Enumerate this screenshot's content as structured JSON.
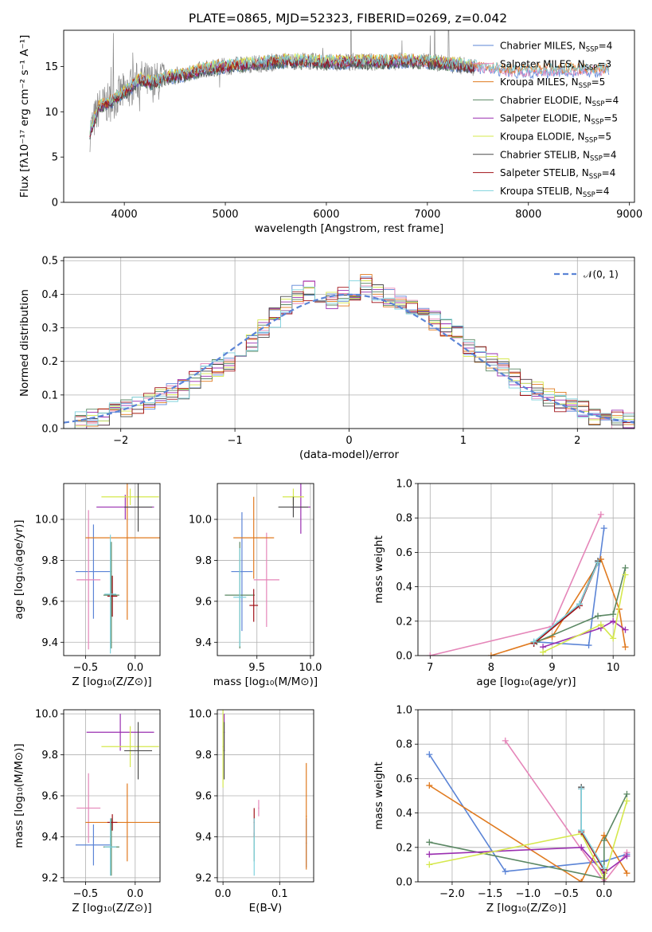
{
  "figure": {
    "title": "PLATE=0865, MJD=52323, FIBERID=0269, z=0.042"
  },
  "colors": {
    "chabrier_miles": "#5b84d6",
    "salpeter_miles": "#e586b9",
    "kroupa_miles": "#e07a1f",
    "chabrier_elodie": "#5a8763",
    "salpeter_elodie": "#9a2fb0",
    "kroupa_elodie": "#d5e84d",
    "chabrier_stelib": "#4a4a4a",
    "salpeter_stelib": "#a01218",
    "kroupa_stelib": "#7ed2dd",
    "observed": "#8a8a8a",
    "normal": "#5b84d6",
    "grid": "#b0b0b0"
  },
  "chart_data": [
    {
      "id": "spectrum",
      "type": "line",
      "title": "PLATE=0865, MJD=52323, FIBERID=0269, z=0.042",
      "xlabel": "wavelength [Angstrom, rest frame]",
      "ylabel": "Flux [fλ10⁻¹⁷ erg cm⁻² s⁻¹ A⁻¹]",
      "xlim": [
        3400,
        9050
      ],
      "ylim": [
        0,
        19
      ],
      "xticks": [
        4000,
        5000,
        6000,
        7000,
        8000,
        9000
      ],
      "yticks": [
        0,
        5,
        10,
        15
      ],
      "grid": false,
      "legend_position": "top-right",
      "legend": [
        {
          "key": "chabrier_miles",
          "label": "Chabrier MILES, N",
          "sub": "SSP",
          "suffix": "=4"
        },
        {
          "key": "salpeter_miles",
          "label": "Salpeter MILES, N",
          "sub": "SSP",
          "suffix": "=3"
        },
        {
          "key": "kroupa_miles",
          "label": "Kroupa MILES, N",
          "sub": "SSP",
          "suffix": "=5"
        },
        {
          "key": "chabrier_elodie",
          "label": "Chabrier ELODIE, N",
          "sub": "SSP",
          "suffix": "=4"
        },
        {
          "key": "salpeter_elodie",
          "label": "Salpeter ELODIE, N",
          "sub": "SSP",
          "suffix": "=5"
        },
        {
          "key": "kroupa_elodie",
          "label": "Kroupa ELODIE, N",
          "sub": "SSP",
          "suffix": "=5"
        },
        {
          "key": "chabrier_stelib",
          "label": "Chabrier STELIB, N",
          "sub": "SSP",
          "suffix": "=4"
        },
        {
          "key": "salpeter_stelib",
          "label": "Salpeter STELIB, N",
          "sub": "SSP",
          "suffix": "=4"
        },
        {
          "key": "kroupa_stelib",
          "label": "Kroupa STELIB, N",
          "sub": "SSP",
          "suffix": "=4"
        }
      ],
      "continuum_x": [
        3650,
        3750,
        3850,
        3950,
        4050,
        4150,
        4250,
        4350,
        4450,
        4600,
        4800,
        5000,
        5200,
        5400,
        5600,
        5800,
        6000,
        6200,
        6400,
        6600,
        6800,
        7000,
        7200,
        7400,
        7600,
        7800,
        8000,
        8200,
        8400,
        8600,
        8800
      ],
      "continuum_y": [
        7.5,
        10.5,
        11.0,
        11.8,
        12.5,
        13.6,
        13.2,
        13.4,
        13.9,
        14.1,
        14.7,
        15.0,
        15.2,
        15.4,
        15.6,
        15.6,
        15.4,
        15.5,
        15.5,
        15.5,
        15.6,
        15.5,
        15.3,
        15.0,
        14.8,
        14.5,
        14.5,
        14.5,
        14.6,
        14.6,
        14.6
      ]
    },
    {
      "id": "residuals",
      "type": "line",
      "xlabel": "(data-model)/error",
      "ylabel": "Normed distribution",
      "xlim": [
        -2.5,
        2.5
      ],
      "ylim": [
        0,
        0.51
      ],
      "xticks": [
        -2,
        -1,
        0,
        1,
        2
      ],
      "yticks": [
        0.0,
        0.1,
        0.2,
        0.3,
        0.4,
        0.5
      ],
      "grid": true,
      "legend_position": "top-right",
      "legend": [
        {
          "key": "normal",
          "label": "𝒩(0, 1)",
          "style": "dashed"
        }
      ],
      "bin_centers": [
        -2.45,
        -2.35,
        -2.25,
        -2.15,
        -2.05,
        -1.95,
        -1.85,
        -1.75,
        -1.65,
        -1.55,
        -1.45,
        -1.35,
        -1.25,
        -1.15,
        -1.05,
        -0.95,
        -0.85,
        -0.75,
        -0.65,
        -0.55,
        -0.45,
        -0.35,
        -0.25,
        -0.15,
        -0.05,
        0.05,
        0.15,
        0.25,
        0.35,
        0.45,
        0.55,
        0.65,
        0.75,
        0.85,
        0.95,
        1.05,
        1.15,
        1.25,
        1.35,
        1.45,
        1.55,
        1.65,
        1.75,
        1.85,
        1.95,
        2.05,
        2.15,
        2.25,
        2.35,
        2.45
      ],
      "histogram_mean": [
        0.015,
        0.022,
        0.03,
        0.04,
        0.048,
        0.058,
        0.072,
        0.085,
        0.098,
        0.105,
        0.118,
        0.145,
        0.17,
        0.185,
        0.2,
        0.22,
        0.258,
        0.3,
        0.33,
        0.37,
        0.4,
        0.41,
        0.39,
        0.38,
        0.395,
        0.41,
        0.43,
        0.4,
        0.39,
        0.38,
        0.37,
        0.35,
        0.32,
        0.3,
        0.28,
        0.24,
        0.22,
        0.2,
        0.18,
        0.15,
        0.125,
        0.11,
        0.09,
        0.08,
        0.07,
        0.055,
        0.04,
        0.03,
        0.025,
        0.02
      ],
      "normal_curve": {
        "mean": 0,
        "sigma": 1
      }
    },
    {
      "id": "age_vs_Z",
      "type": "scatter",
      "xlabel": "Z [log₁₀(Z/Z⊙)]",
      "ylabel": "age  [log₁₀(age/yr)]",
      "xlim": [
        -0.72,
        0.25
      ],
      "ylim": [
        9.335,
        10.175
      ],
      "xticks": [
        -0.5,
        0.0
      ],
      "yticks": [
        9.4,
        9.6,
        9.8,
        10.0
      ],
      "grid": true,
      "points": [
        {
          "series": "chabrier_miles",
          "x": -0.42,
          "y": 9.745,
          "xerr": 0.18,
          "yerr": 0.23
        },
        {
          "series": "salpeter_miles",
          "x": -0.47,
          "y": 9.705,
          "xerr": 0.12,
          "yerr": 0.34
        },
        {
          "series": "kroupa_miles",
          "x": -0.08,
          "y": 9.91,
          "xerr": 0.42,
          "yerr": 0.4
        },
        {
          "series": "chabrier_elodie",
          "x": -0.24,
          "y": 9.63,
          "xerr": 0.08,
          "yerr": 0.26
        },
        {
          "series": "salpeter_elodie",
          "x": -0.1,
          "y": 10.06,
          "xerr": 0.29,
          "yerr": 0.06
        },
        {
          "series": "kroupa_elodie",
          "x": -0.05,
          "y": 10.11,
          "xerr": 0.29,
          "yerr": 0.04
        },
        {
          "series": "chabrier_stelib",
          "x": 0.03,
          "y": 10.06,
          "xerr": 0.14,
          "yerr": 0.12
        },
        {
          "series": "salpeter_stelib",
          "x": -0.23,
          "y": 9.625,
          "xerr": 0.05,
          "yerr": 0.1
        },
        {
          "series": "kroupa_stelib",
          "x": -0.25,
          "y": 9.635,
          "xerr": 0.06,
          "yerr": 0.29
        }
      ]
    },
    {
      "id": "age_vs_mass",
      "type": "scatter",
      "xlabel": "mass [log₁₀(M/M⊙)]",
      "ylabel": "",
      "xlim": [
        9.13,
        10.03
      ],
      "ylim": [
        9.335,
        10.175
      ],
      "xticks": [
        9.5,
        10.0
      ],
      "yticks": [
        9.4,
        9.6,
        9.8,
        10.0
      ],
      "grid": true,
      "points": [
        {
          "series": "chabrier_miles",
          "x": 9.36,
          "y": 9.745,
          "xerr": 0.1,
          "yerr": 0.29
        },
        {
          "series": "salpeter_miles",
          "x": 9.59,
          "y": 9.705,
          "xerr": 0.12,
          "yerr": 0.23
        },
        {
          "series": "kroupa_miles",
          "x": 9.47,
          "y": 9.91,
          "xerr": 0.19,
          "yerr": 0.2
        },
        {
          "series": "chabrier_elodie",
          "x": 9.34,
          "y": 9.63,
          "xerr": 0.14,
          "yerr": 0.26
        },
        {
          "series": "salpeter_elodie",
          "x": 9.91,
          "y": 10.06,
          "xerr": 0.09,
          "yerr": 0.13
        },
        {
          "series": "kroupa_elodie",
          "x": 9.84,
          "y": 10.11,
          "xerr": 0.1,
          "yerr": 0.04
        },
        {
          "series": "chabrier_stelib",
          "x": 9.84,
          "y": 10.06,
          "xerr": 0.14,
          "yerr": 0.05
        },
        {
          "series": "salpeter_stelib",
          "x": 9.47,
          "y": 9.58,
          "xerr": 0.04,
          "yerr": 0.08
        },
        {
          "series": "kroupa_stelib",
          "x": 9.34,
          "y": 9.62,
          "xerr": 0.06,
          "yerr": 0.24
        }
      ]
    },
    {
      "id": "weight_vs_age",
      "type": "line",
      "xlabel": "age  [log₁₀(age/yr)]",
      "ylabel": "mass weight",
      "xlim": [
        6.8,
        10.35
      ],
      "ylim": [
        0,
        1.0
      ],
      "xticks": [
        7,
        8,
        9,
        10
      ],
      "yticks": [
        0.0,
        0.2,
        0.4,
        0.6,
        0.8,
        1.0
      ],
      "grid": true,
      "series": [
        {
          "key": "chabrier_miles",
          "x": [
            8.7,
            9.6,
            9.85
          ],
          "y": [
            0.08,
            0.06,
            0.74
          ]
        },
        {
          "key": "salpeter_miles",
          "x": [
            7.0,
            9.0,
            9.8
          ],
          "y": [
            0.0,
            0.17,
            0.82
          ]
        },
        {
          "key": "kroupa_miles",
          "x": [
            8.0,
            9.0,
            9.8,
            10.1,
            10.2
          ],
          "y": [
            0.0,
            0.11,
            0.56,
            0.27,
            0.05
          ]
        },
        {
          "key": "chabrier_elodie",
          "x": [
            8.75,
            9.75,
            10.0,
            10.2
          ],
          "y": [
            0.08,
            0.23,
            0.24,
            0.51
          ]
        },
        {
          "key": "salpeter_elodie",
          "x": [
            8.85,
            9.8,
            10.0,
            10.2
          ],
          "y": [
            0.05,
            0.16,
            0.2,
            0.15
          ]
        },
        {
          "key": "kroupa_elodie",
          "x": [
            8.85,
            9.8,
            10.0,
            10.2
          ],
          "y": [
            0.02,
            0.18,
            0.1,
            0.47
          ]
        },
        {
          "key": "chabrier_stelib",
          "x": [
            8.7,
            9.45,
            9.75
          ],
          "y": [
            0.07,
            0.3,
            0.55
          ]
        },
        {
          "key": "salpeter_stelib",
          "x": [
            8.7,
            9.45,
            9.75
          ],
          "y": [
            0.07,
            0.29,
            0.54
          ]
        },
        {
          "key": "kroupa_stelib",
          "x": [
            8.7,
            9.45,
            9.75
          ],
          "y": [
            0.08,
            0.3,
            0.54
          ]
        }
      ]
    },
    {
      "id": "mass_vs_Z",
      "type": "scatter",
      "xlabel": "Z [log₁₀(Z/Z⊙)]",
      "ylabel": "mass [log₁₀(M/M⊙)]",
      "xlim": [
        -0.72,
        0.25
      ],
      "ylim": [
        9.18,
        10.02
      ],
      "xticks": [
        -0.5,
        0.0
      ],
      "yticks": [
        9.2,
        9.4,
        9.6,
        9.8,
        10.0
      ],
      "grid": true,
      "points": [
        {
          "series": "chabrier_miles",
          "x": -0.42,
          "y": 9.36,
          "xerr": 0.18,
          "yerr": 0.1
        },
        {
          "series": "salpeter_miles",
          "x": -0.47,
          "y": 9.54,
          "xerr": 0.12,
          "yerr": 0.17
        },
        {
          "series": "kroupa_miles",
          "x": -0.08,
          "y": 9.47,
          "xerr": 0.42,
          "yerr": 0.19
        },
        {
          "series": "chabrier_elodie",
          "x": -0.24,
          "y": 9.35,
          "xerr": 0.08,
          "yerr": 0.14
        },
        {
          "series": "salpeter_elodie",
          "x": -0.15,
          "y": 9.91,
          "xerr": 0.34,
          "yerr": 0.09
        },
        {
          "series": "kroupa_elodie",
          "x": -0.05,
          "y": 9.84,
          "xerr": 0.29,
          "yerr": 0.1
        },
        {
          "series": "chabrier_stelib",
          "x": 0.03,
          "y": 9.82,
          "xerr": 0.14,
          "yerr": 0.14
        },
        {
          "series": "salpeter_stelib",
          "x": -0.23,
          "y": 9.47,
          "xerr": 0.05,
          "yerr": 0.04
        },
        {
          "series": "kroupa_stelib",
          "x": -0.25,
          "y": 9.35,
          "xerr": 0.06,
          "yerr": 0.14
        }
      ]
    },
    {
      "id": "mass_vs_ebv",
      "type": "scatter",
      "xlabel": "E(B-V)",
      "ylabel": "",
      "xlim": [
        -0.01,
        0.16
      ],
      "ylim": [
        9.18,
        10.02
      ],
      "xticks": [
        0.0,
        0.1
      ],
      "yticks": [
        9.2,
        9.4,
        9.6,
        9.8,
        10.0
      ],
      "grid": true,
      "points": [
        {
          "series": "chabrier_miles",
          "x": 0.147,
          "y": 9.37,
          "xerr": 0,
          "yerr": 0.12
        },
        {
          "series": "salpeter_miles",
          "x": 0.063,
          "y": 9.54,
          "xerr": 0,
          "yerr": 0.04
        },
        {
          "series": "kroupa_miles",
          "x": 0.147,
          "y": 9.5,
          "xerr": 0,
          "yerr": 0.26
        },
        {
          "series": "chabrier_elodie",
          "x": 0.055,
          "y": 9.35,
          "xerr": 0,
          "yerr": 0.07
        },
        {
          "series": "salpeter_elodie",
          "x": 0.002,
          "y": 9.91,
          "xerr": 0,
          "yerr": 0.09
        },
        {
          "series": "kroupa_elodie",
          "x": 0.0,
          "y": 9.84,
          "xerr": 0,
          "yerr": 0.2
        },
        {
          "series": "chabrier_stelib",
          "x": 0.002,
          "y": 9.82,
          "xerr": 0,
          "yerr": 0.14
        },
        {
          "series": "salpeter_stelib",
          "x": 0.055,
          "y": 9.47,
          "xerr": 0,
          "yerr": 0.07
        },
        {
          "series": "kroupa_stelib",
          "x": 0.055,
          "y": 9.35,
          "xerr": 0,
          "yerr": 0.14
        }
      ]
    },
    {
      "id": "weight_vs_Z",
      "type": "line",
      "xlabel": "Z [log₁₀(Z/Z⊙)]",
      "ylabel": "mass weight",
      "xlim": [
        -2.45,
        0.4
      ],
      "ylim": [
        0,
        1.0
      ],
      "xticks": [
        -2.0,
        -1.5,
        -1.0,
        -0.5,
        0.0
      ],
      "yticks": [
        0.0,
        0.2,
        0.4,
        0.6,
        0.8,
        1.0
      ],
      "grid": true,
      "series": [
        {
          "key": "chabrier_miles",
          "x": [
            -2.3,
            -1.3,
            0.0,
            0.3
          ],
          "y": [
            0.74,
            0.06,
            0.12,
            0.16
          ]
        },
        {
          "key": "salpeter_miles",
          "x": [
            -1.3,
            0.0,
            0.3
          ],
          "y": [
            0.82,
            0.0,
            0.17
          ]
        },
        {
          "key": "kroupa_miles",
          "x": [
            -2.3,
            -0.3,
            0.0,
            0.3
          ],
          "y": [
            0.56,
            0.0,
            0.27,
            0.05
          ]
        },
        {
          "key": "chabrier_elodie",
          "x": [
            -2.3,
            0.0,
            0.0,
            0.3
          ],
          "y": [
            0.23,
            0.02,
            0.24,
            0.51
          ]
        },
        {
          "key": "salpeter_elodie",
          "x": [
            -2.3,
            -0.3,
            0.0,
            0.3
          ],
          "y": [
            0.16,
            0.2,
            0.05,
            0.15
          ]
        },
        {
          "key": "kroupa_elodie",
          "x": [
            -2.3,
            -0.3,
            0.0,
            0.3
          ],
          "y": [
            0.1,
            0.28,
            0.02,
            0.47
          ]
        },
        {
          "key": "chabrier_stelib",
          "x": [
            -0.3,
            -0.3,
            0.0,
            0.0
          ],
          "y": [
            0.55,
            0.3,
            0.07,
            0.0
          ]
        },
        {
          "key": "salpeter_stelib",
          "x": [
            -0.3,
            -0.3,
            0.0
          ],
          "y": [
            0.54,
            0.29,
            0.07
          ]
        },
        {
          "key": "kroupa_stelib",
          "x": [
            -0.3,
            -0.3,
            0.0
          ],
          "y": [
            0.54,
            0.3,
            0.08
          ]
        }
      ]
    }
  ]
}
